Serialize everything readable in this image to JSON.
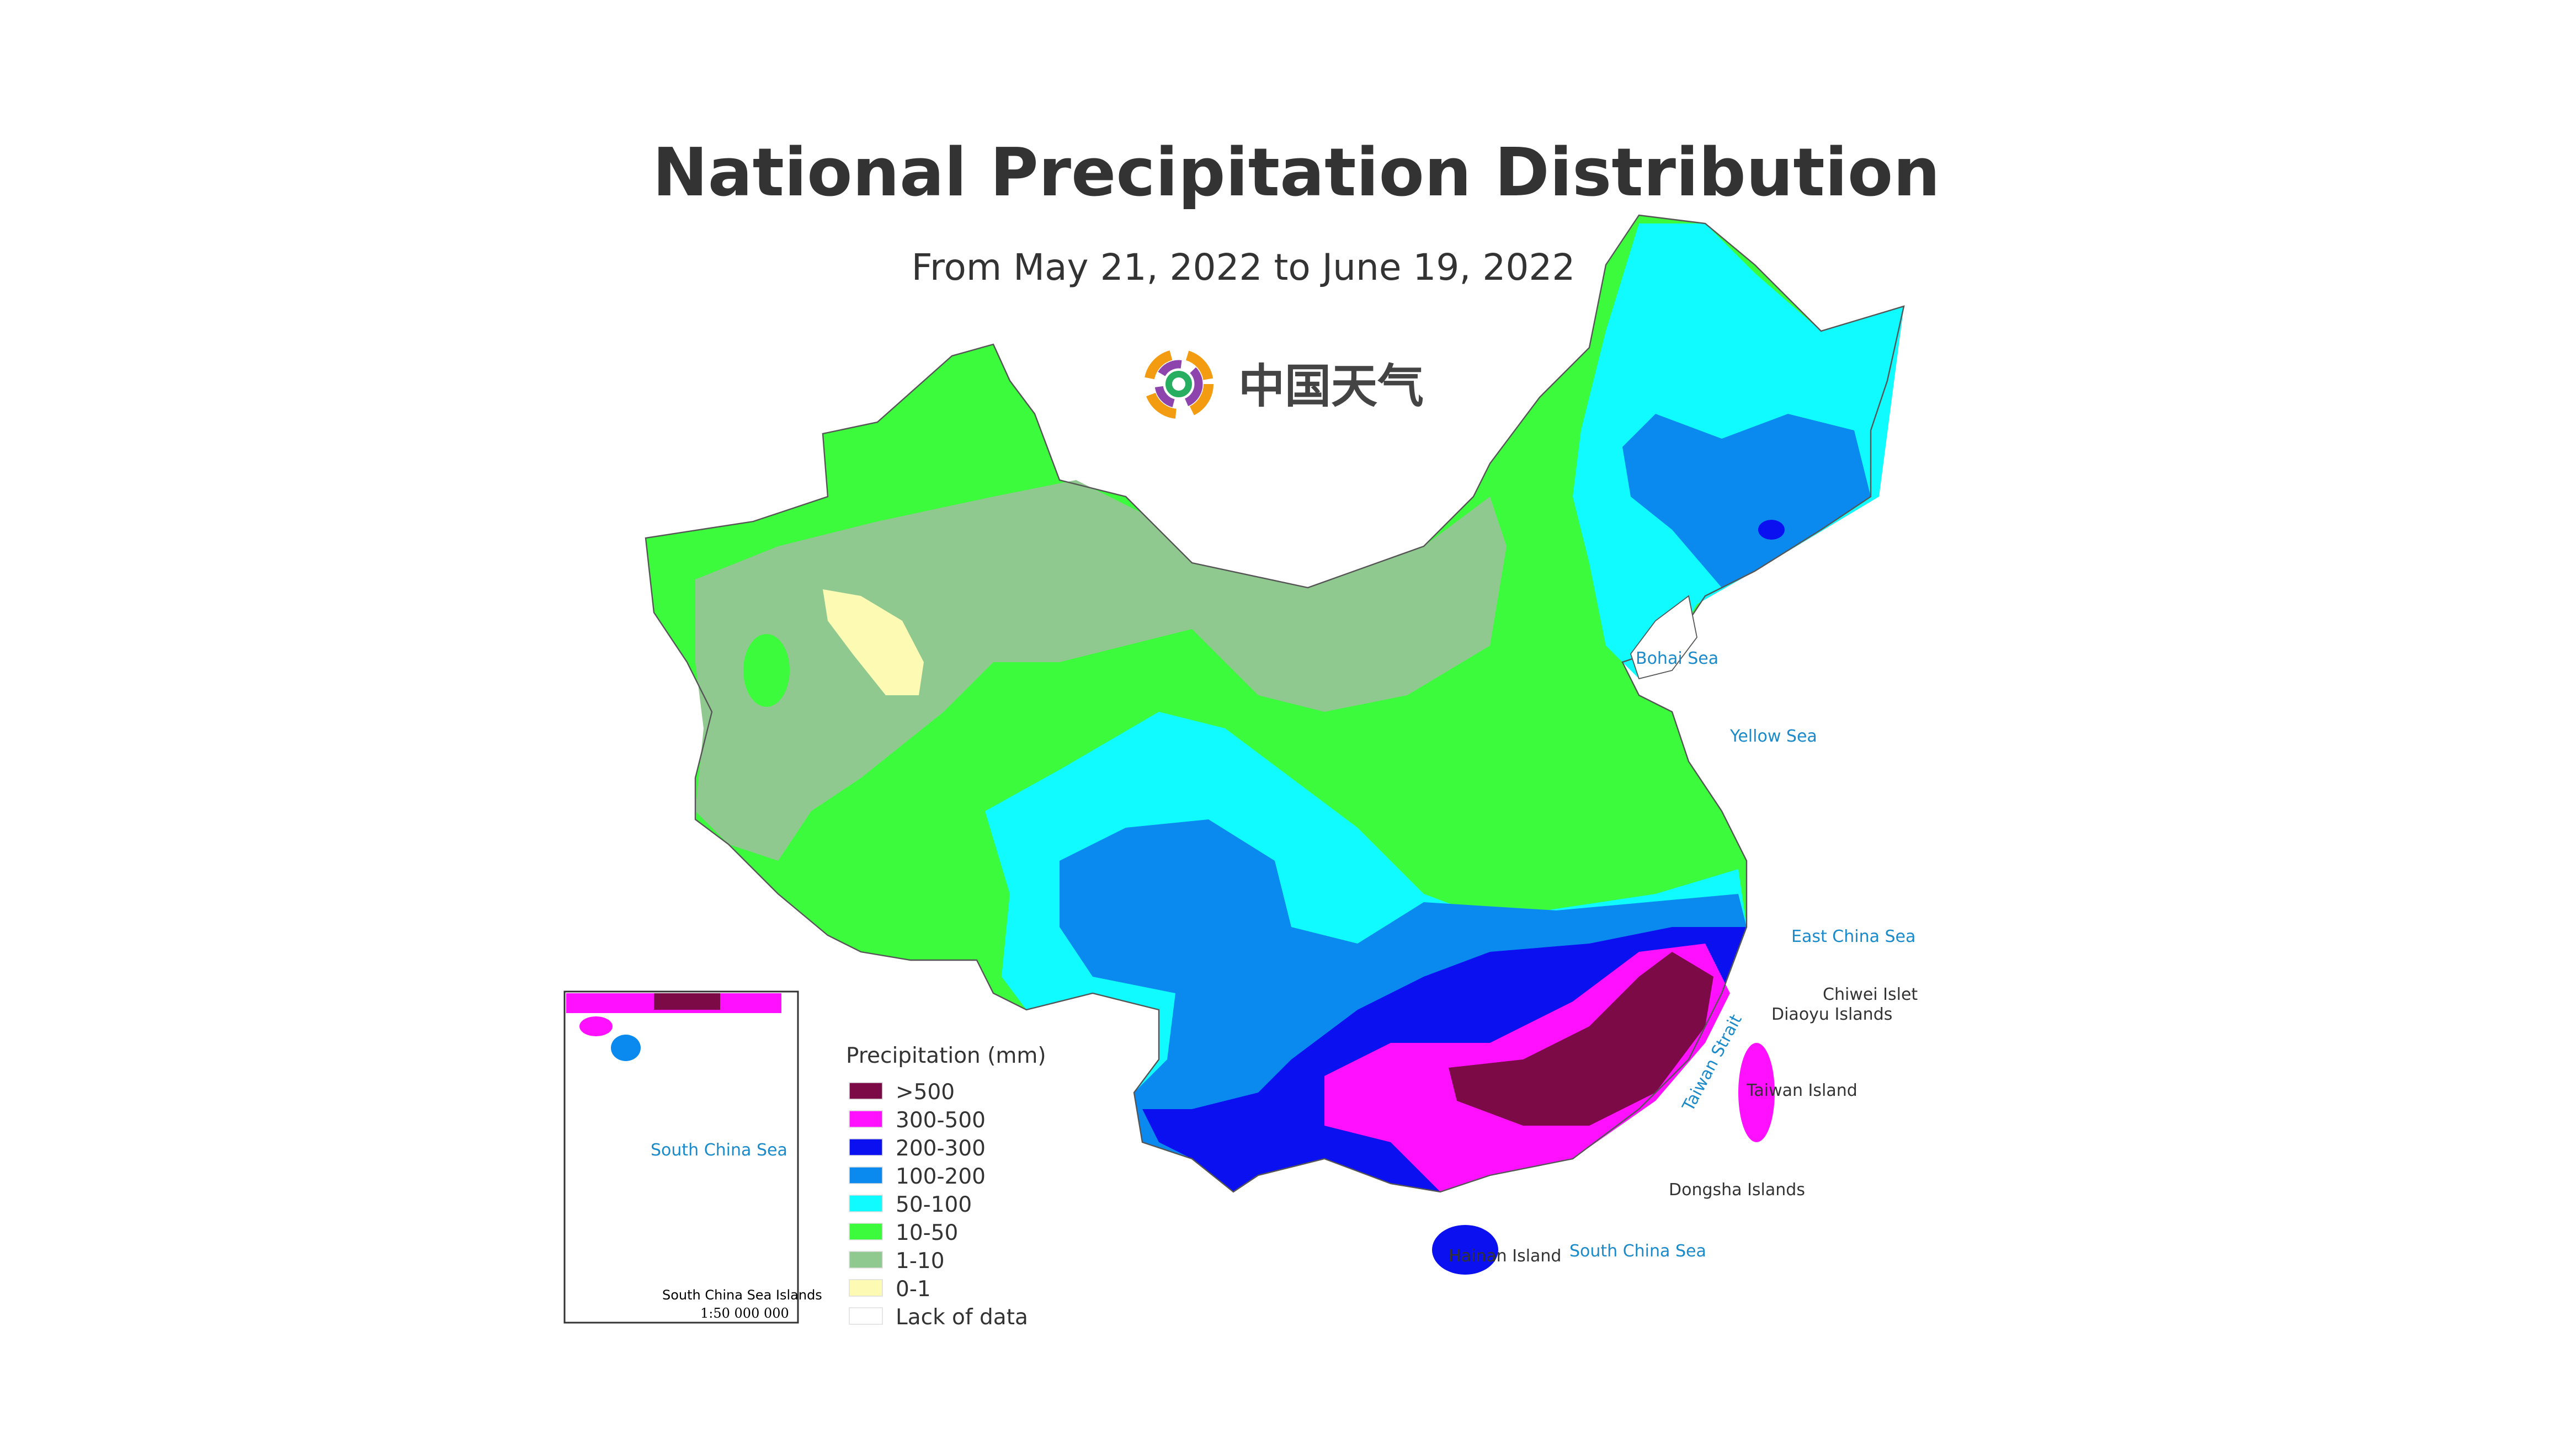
{
  "title": "National Precipitation Distribution",
  "subtitle": "From May 21, 2022 to June 19, 2022",
  "logo_text": "中国天气",
  "legend": {
    "title": "Precipitation (mm)",
    "items": [
      {
        "label": ">500",
        "color": "#7b0a47"
      },
      {
        "label": "300-500",
        "color": "#ff10ff"
      },
      {
        "label": "200-300",
        "color": "#0a10f0"
      },
      {
        "label": "100-200",
        "color": "#0a8aef"
      },
      {
        "label": "50-100",
        "color": "#10fbff"
      },
      {
        "label": "10-50",
        "color": "#3cfb3c"
      },
      {
        "label": "1-10",
        "color": "#8fc98f"
      },
      {
        "label": "0-1",
        "color": "#fdfab4"
      },
      {
        "label": "Lack of data",
        "color": "#ffffff"
      }
    ]
  },
  "map_labels": {
    "bohai_sea": "Bohai Sea",
    "yellow_sea": "Yellow Sea",
    "east_china_sea": "East China Sea",
    "chiwei_islet": "Chiwei Islet",
    "diaoyu_islands": "Diaoyu Islands",
    "taiwan_strait": "Taiwan Strait",
    "taiwan_island": "Taiwan Island",
    "dongsha_islands": "Dongsha Islands",
    "hainan_island": "Hainan Island",
    "south_china_sea": "South China Sea"
  },
  "inset": {
    "sea_label": "South China Sea",
    "title": "South China Sea Islands",
    "scale": "1:50 000 000"
  }
}
